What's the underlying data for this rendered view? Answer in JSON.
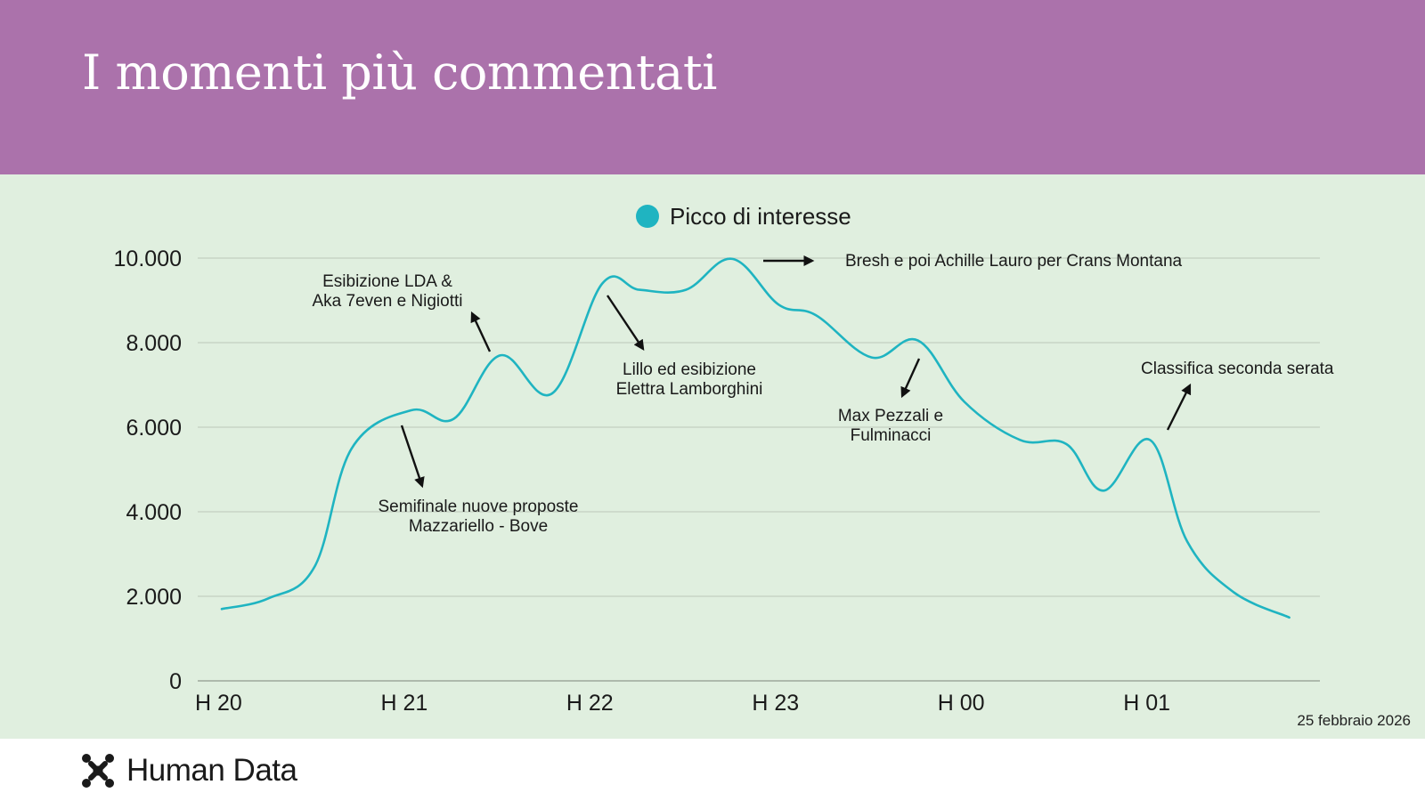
{
  "header": {
    "title": "I momenti più commentati"
  },
  "chart_data": {
    "type": "line",
    "title": "",
    "legend": {
      "label": "Picco di interesse",
      "color": "#1fb4c1",
      "position": "top-center"
    },
    "ylim": [
      0,
      10000
    ],
    "yticks": [
      0,
      2000,
      4000,
      6000,
      8000,
      10000
    ],
    "ytick_labels": [
      "0",
      "2.000",
      "4.000",
      "6.000",
      "8.000",
      "10.000"
    ],
    "xlim": [
      20,
      25.8
    ],
    "xticks": [
      20,
      21,
      22,
      23,
      24,
      25
    ],
    "xtick_labels": [
      "H 20",
      "H 21",
      "H 22",
      "H 23",
      "H 00",
      "H 01"
    ],
    "grid": true,
    "series": [
      {
        "name": "Picco di interesse",
        "color": "#1fb4c1",
        "x": [
          20,
          20.25,
          20.5,
          20.7,
          21.02,
          21.25,
          21.5,
          21.78,
          22.05,
          22.25,
          22.5,
          22.75,
          23.0,
          23.2,
          23.5,
          23.75,
          24.0,
          24.3,
          24.55,
          24.75,
          25.0,
          25.2,
          25.45,
          25.75
        ],
        "values": [
          1700,
          1950,
          2700,
          5500,
          6400,
          6200,
          7700,
          6800,
          9400,
          9250,
          9250,
          9980,
          8900,
          8650,
          7650,
          8050,
          6600,
          5700,
          5600,
          4500,
          5700,
          3300,
          2100,
          1500
        ]
      }
    ],
    "annotations": [
      {
        "text": [
          "Esibizione LDA &",
          "Aka 7even e Nigiotti"
        ]
      },
      {
        "text": [
          "Semifinale nuove proposte",
          "Mazzariello - Bove"
        ]
      },
      {
        "text": [
          "Lillo ed esibizione",
          "Elettra Lamborghini"
        ]
      },
      {
        "text": [
          "Bresh e poi Achille Lauro per Crans Montana"
        ]
      },
      {
        "text": [
          "Max Pezzali e",
          "Fulminacci"
        ]
      },
      {
        "text": [
          "Classifica seconda serata"
        ]
      }
    ]
  },
  "footer": {
    "date": "25 febbraio 2026",
    "brand": "Human Data"
  }
}
